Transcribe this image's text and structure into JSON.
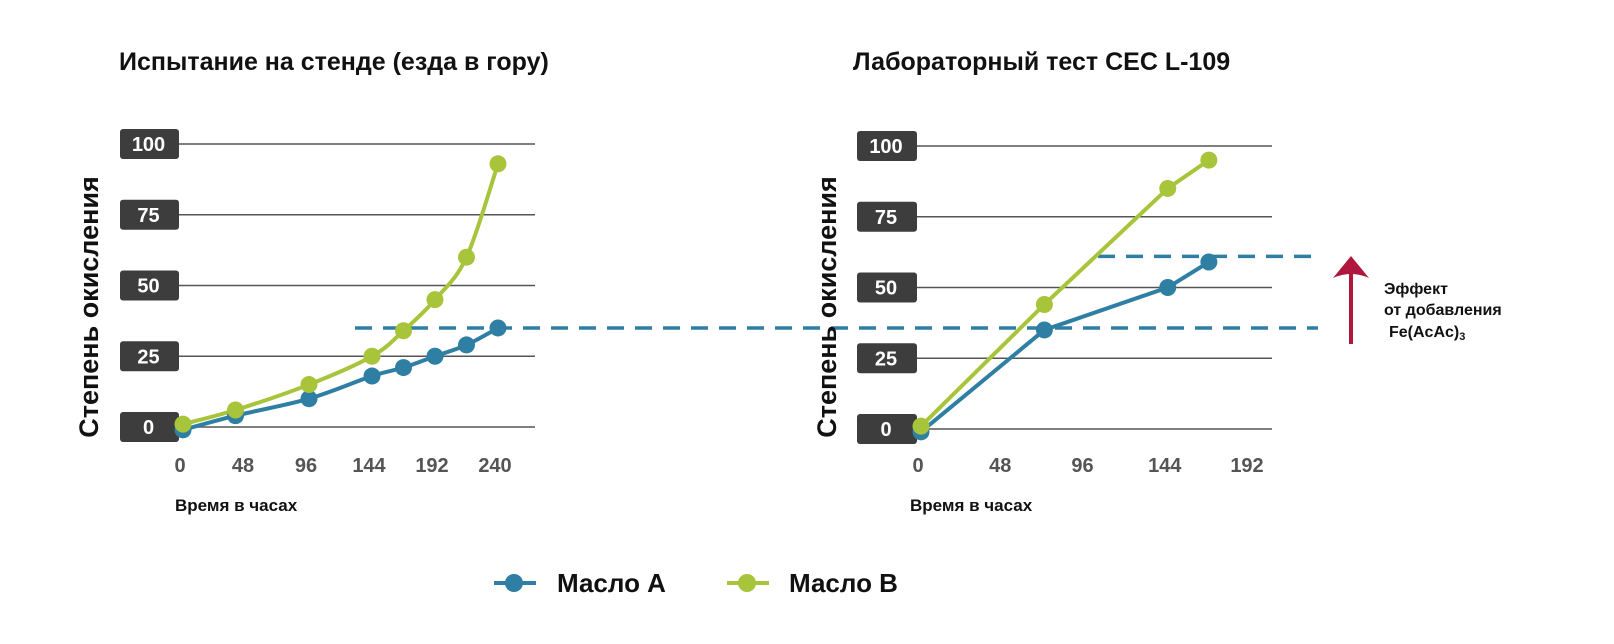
{
  "colors": {
    "oil_a": "#2e7fa3",
    "oil_b": "#a8c43a",
    "arrow": "#b0173e",
    "tick_box": "#3d3d3d",
    "grid": "#555555"
  },
  "legend": [
    {
      "label": "Масло A",
      "color": "#2e7fa3"
    },
    {
      "label": "Масло B",
      "color": "#a8c43a"
    }
  ],
  "annotation": {
    "line1": "Эффект",
    "line2": "от добавления",
    "line3": "Fe(AcAc)",
    "subscript": "3"
  },
  "chart_data": [
    {
      "type": "line",
      "title": "Испытание на стенде (езда в гору)",
      "ylabel": "Степень окисления",
      "xlabel": "Время в часах",
      "x_ticks": [
        0,
        48,
        96,
        144,
        192,
        240
      ],
      "y_ticks": [
        0,
        25,
        50,
        75,
        100
      ],
      "xlim": [
        0,
        240
      ],
      "ylim": [
        0,
        100
      ],
      "smooth": true,
      "reference_level": 35,
      "series": [
        {
          "name": "Масло A",
          "color": "#2e7fa3",
          "x": [
            0,
            40,
            96,
            144,
            168,
            192,
            216,
            240
          ],
          "y": [
            -1,
            4,
            10,
            18,
            21,
            25,
            29,
            35
          ]
        },
        {
          "name": "Масло B",
          "color": "#a8c43a",
          "x": [
            0,
            40,
            96,
            144,
            168,
            192,
            216,
            240
          ],
          "y": [
            1,
            6,
            15,
            25,
            34,
            45,
            60,
            93
          ]
        }
      ]
    },
    {
      "type": "line",
      "title": "Лабораторный тест CEC L-109",
      "ylabel": "Степень окисления",
      "xlabel": "Время в часах",
      "x_ticks": [
        0,
        48,
        96,
        144,
        192
      ],
      "y_ticks": [
        0,
        25,
        50,
        75,
        100
      ],
      "xlim": [
        0,
        192
      ],
      "ylim": [
        0,
        100
      ],
      "smooth": false,
      "reference_levels": [
        35,
        61
      ],
      "series": [
        {
          "name": "Масло A",
          "color": "#2e7fa3",
          "x": [
            0,
            72,
            144,
            168
          ],
          "y": [
            -1,
            35,
            50,
            59
          ]
        },
        {
          "name": "Масло B",
          "color": "#a8c43a",
          "x": [
            0,
            72,
            144,
            168
          ],
          "y": [
            1,
            44,
            85,
            95
          ]
        }
      ]
    }
  ]
}
